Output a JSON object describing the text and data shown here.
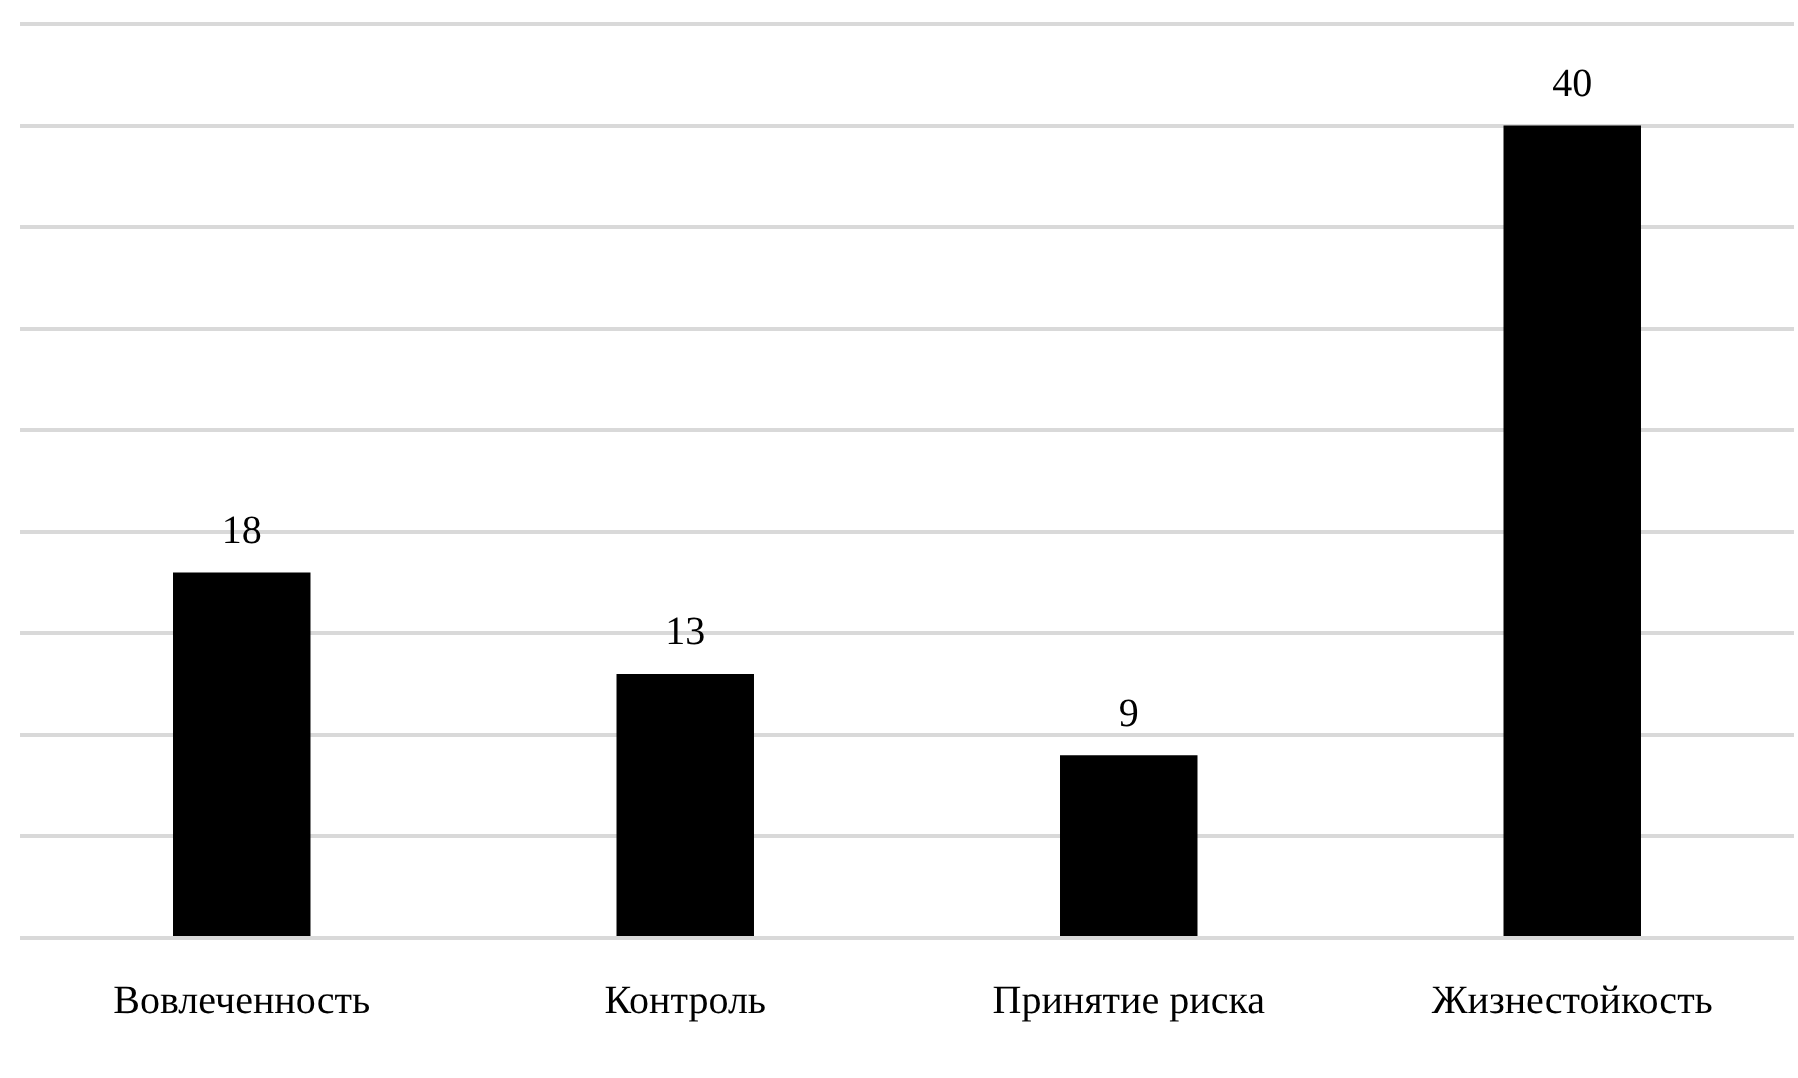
{
  "chart_data": {
    "type": "bar",
    "categories": [
      "Вовлеченность",
      "Контроль",
      "Принятие риска",
      "Жизнестойкость"
    ],
    "values": [
      18,
      13,
      9,
      40
    ],
    "color": "#000000",
    "ylim": [
      0,
      45
    ],
    "yticks": [
      {
        "value": 0,
        "label": null
      },
      {
        "value": 5,
        "label": null
      },
      {
        "value": 10,
        "label": null
      },
      {
        "value": 15,
        "label": null
      },
      {
        "value": 20,
        "label": null
      },
      {
        "value": 25,
        "label": null
      },
      {
        "value": 30,
        "label": null
      },
      {
        "value": 35,
        "label": null
      },
      {
        "value": 40,
        "label": null
      },
      {
        "value": 45,
        "label": null
      }
    ],
    "grid": "y",
    "tick_labels": "x",
    "data_labels": true,
    "legend": false
  }
}
